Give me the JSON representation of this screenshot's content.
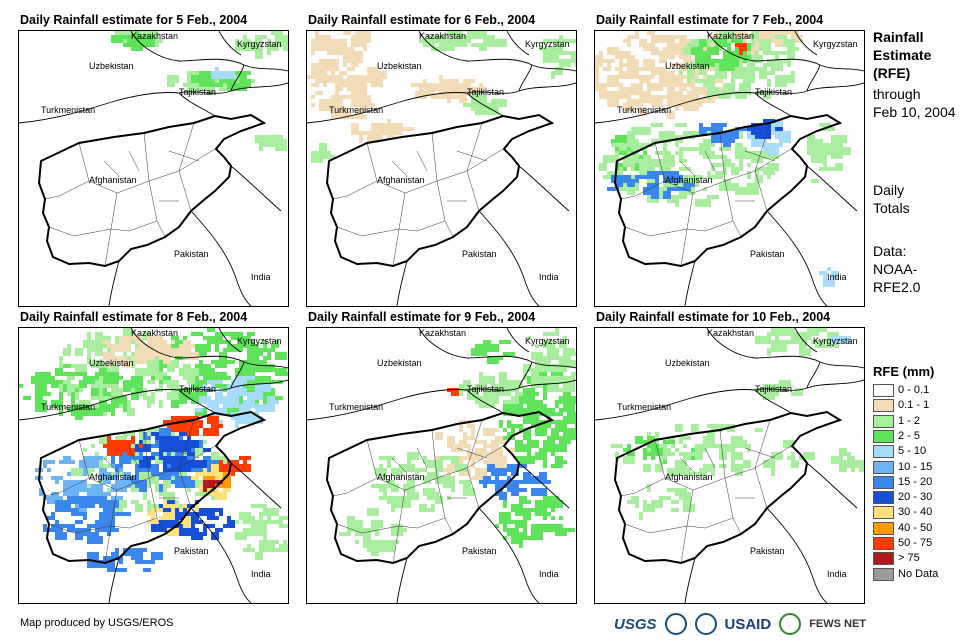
{
  "panels": [
    {
      "title": "Daily Rainfall estimate for 5 Feb., 2004"
    },
    {
      "title": "Daily Rainfall estimate for 6 Feb., 2004"
    },
    {
      "title": "Daily Rainfall estimate for 7 Feb., 2004"
    },
    {
      "title": "Daily Rainfall estimate for 8 Feb., 2004"
    },
    {
      "title": "Daily Rainfall estimate for 9 Feb., 2004"
    },
    {
      "title": "Daily Rainfall estimate for 10 Feb., 2004"
    }
  ],
  "countries": {
    "kazakhstan": "Kazakhstan",
    "kyrgyzstan": "Kyrgyzstan",
    "uzbekistan": "Uzbekistan",
    "tajikistan": "Tajikistan",
    "turkmenistan": "Turkmenistan",
    "afghanistan": "Afghanistan",
    "pakistan": "Pakistan",
    "india": "India"
  },
  "sidebar": {
    "title_line1": "Rainfall",
    "title_line2": "Estimate",
    "title_line3": "(RFE)",
    "through": "through",
    "date": "Feb 10, 2004",
    "daily1": "Daily",
    "daily2": "Totals",
    "data1": "Data:",
    "data2": "NOAA-",
    "data3": "RFE2.0"
  },
  "legend": {
    "title": "RFE (mm)",
    "items": [
      {
        "label": "0 - 0.1",
        "color": "#ffffff"
      },
      {
        "label": "0.1 - 1",
        "color": "#f2dcb8"
      },
      {
        "label": "1 - 2",
        "color": "#a9ee9f"
      },
      {
        "label": "2 - 5",
        "color": "#5ee35a"
      },
      {
        "label": "5 - 10",
        "color": "#a6dcf8"
      },
      {
        "label": "10 - 15",
        "color": "#6cb4f3"
      },
      {
        "label": "15 - 20",
        "color": "#3a86ec"
      },
      {
        "label": "20 - 30",
        "color": "#1650d8"
      },
      {
        "label": "30 - 40",
        "color": "#ffe07a"
      },
      {
        "label": "40 - 50",
        "color": "#ff9a00"
      },
      {
        "label": "50 - 75",
        "color": "#ff3b00"
      },
      {
        "label": "> 75",
        "color": "#b01a1a"
      },
      {
        "label": "No Data",
        "color": "#9a9a9a"
      }
    ]
  },
  "footer": {
    "credit": "Map produced by USGS/EROS",
    "usgs": "USGS",
    "usaid": "USAID",
    "fews": "FEWS NET"
  }
}
